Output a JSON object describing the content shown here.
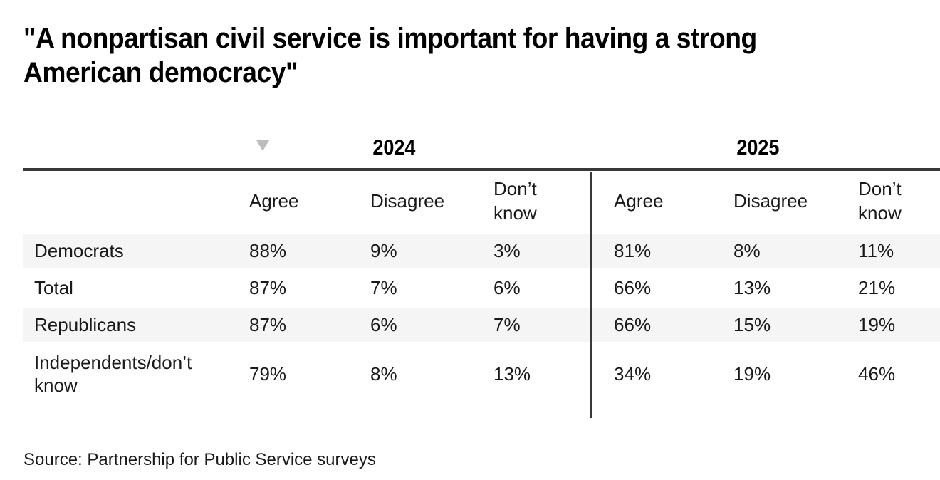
{
  "title_lines": [
    "\"A nonpartisan civil service is important for having a strong",
    "American democracy\""
  ],
  "table": {
    "sort_indicator_icon": "triangle-down-icon",
    "year_headers": [
      "2024",
      "2025"
    ],
    "column_headers": {
      "agree": "Agree",
      "disagree": "Disagree",
      "dont_know": "Don’t know"
    },
    "rows": [
      {
        "label": "Democrats",
        "y2024": {
          "agree": "88%",
          "disagree": "9%",
          "dont_know": "3%"
        },
        "y2025": {
          "agree": "81%",
          "disagree": "8%",
          "dont_know": "11%"
        }
      },
      {
        "label": "Total",
        "y2024": {
          "agree": "87%",
          "disagree": "7%",
          "dont_know": "6%"
        },
        "y2025": {
          "agree": "66%",
          "disagree": "13%",
          "dont_know": "21%"
        }
      },
      {
        "label": "Republicans",
        "y2024": {
          "agree": "87%",
          "disagree": "6%",
          "dont_know": "7%"
        },
        "y2025": {
          "agree": "66%",
          "disagree": "15%",
          "dont_know": "19%"
        }
      },
      {
        "label": "Independents/don’t know",
        "y2024": {
          "agree": "79%",
          "disagree": "8%",
          "dont_know": "13%"
        },
        "y2025": {
          "agree": "34%",
          "disagree": "19%",
          "dont_know": "46%"
        }
      }
    ]
  },
  "source": "Source: Partnership for Public Service surveys",
  "colors": {
    "row_shade": "#f5f5f5",
    "rule_dark": "#383838",
    "sort_triangle": "#bdbdbd",
    "text": "#1a1a1a"
  },
  "chart_data": {
    "type": "table",
    "title": "\"A nonpartisan civil service is important for having a strong American democracy\"",
    "column_groups": [
      "2024",
      "2025"
    ],
    "columns": [
      "Agree",
      "Disagree",
      "Don't know"
    ],
    "rows": [
      "Democrats",
      "Total",
      "Republicans",
      "Independents/don't know"
    ],
    "values_2024_percent": [
      [
        88,
        9,
        3
      ],
      [
        87,
        7,
        6
      ],
      [
        87,
        6,
        7
      ],
      [
        79,
        8,
        13
      ]
    ],
    "values_2025_percent": [
      [
        81,
        8,
        11
      ],
      [
        66,
        13,
        21
      ],
      [
        66,
        15,
        19
      ],
      [
        34,
        19,
        46
      ]
    ],
    "unit": "%",
    "source": "Source: Partnership for Public Service surveys",
    "layout_hints": {
      "shaded_rows": [
        "Democrats",
        "Republicans"
      ],
      "group_divider": "vertical line between 2024 and 2025",
      "sort_indicator": "gray triangle above first data column"
    }
  }
}
